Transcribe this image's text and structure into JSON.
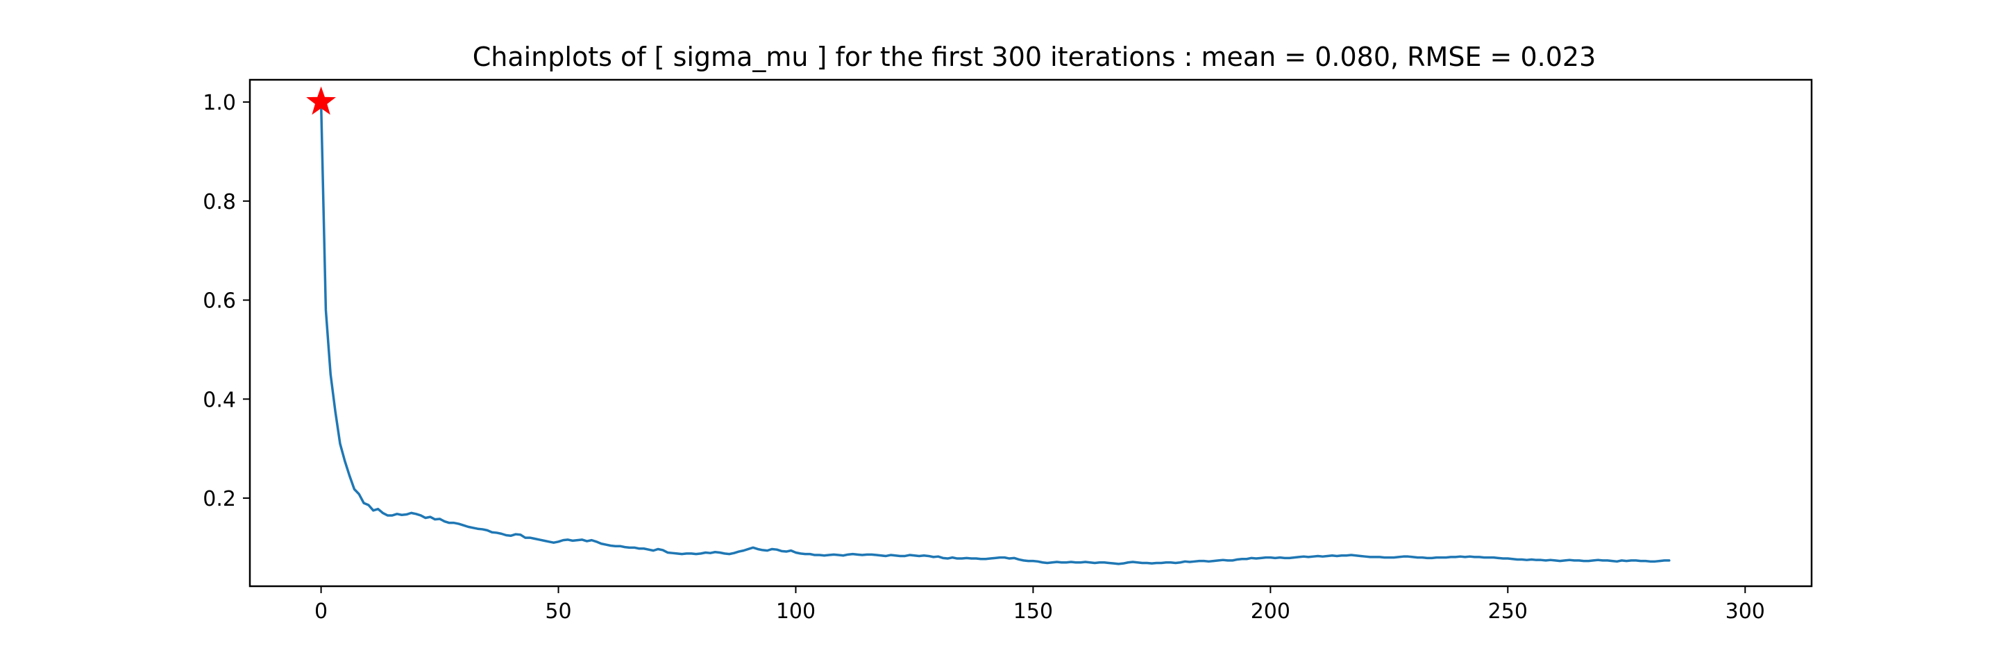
{
  "chart_data": {
    "type": "line",
    "title": "Chainplots of [ sigma_mu ] for the first 300 iterations : mean = 0.080, RMSE = 0.023",
    "xlabel": "",
    "ylabel": "",
    "xlim": [
      -15,
      314
    ],
    "ylim": [
      0.022,
      1.045
    ],
    "xticks": [
      0,
      50,
      100,
      150,
      200,
      250,
      300
    ],
    "xtick_labels": [
      "0",
      "50",
      "100",
      "150",
      "200",
      "250",
      "300"
    ],
    "yticks": [
      0.2,
      0.4,
      0.6,
      0.8,
      1.0
    ],
    "ytick_labels": [
      "0.2",
      "0.4",
      "0.6",
      "0.8",
      "1.0"
    ],
    "grid": false,
    "series": [
      {
        "color": "#1f77b4",
        "x_start": 0,
        "x_step": 1,
        "values": [
          1.0,
          0.58,
          0.45,
          0.375,
          0.31,
          0.275,
          0.245,
          0.218,
          0.208,
          0.19,
          0.186,
          0.175,
          0.178,
          0.17,
          0.165,
          0.165,
          0.168,
          0.166,
          0.167,
          0.17,
          0.168,
          0.165,
          0.16,
          0.162,
          0.157,
          0.158,
          0.153,
          0.15,
          0.15,
          0.148,
          0.145,
          0.142,
          0.14,
          0.138,
          0.137,
          0.135,
          0.131,
          0.13,
          0.128,
          0.125,
          0.124,
          0.127,
          0.126,
          0.12,
          0.12,
          0.118,
          0.116,
          0.114,
          0.112,
          0.11,
          0.112,
          0.115,
          0.116,
          0.114,
          0.115,
          0.116,
          0.113,
          0.115,
          0.112,
          0.108,
          0.106,
          0.104,
          0.103,
          0.103,
          0.101,
          0.1,
          0.1,
          0.098,
          0.098,
          0.096,
          0.094,
          0.097,
          0.095,
          0.09,
          0.089,
          0.088,
          0.087,
          0.088,
          0.088,
          0.087,
          0.088,
          0.09,
          0.089,
          0.091,
          0.09,
          0.088,
          0.087,
          0.089,
          0.092,
          0.094,
          0.097,
          0.1,
          0.097,
          0.095,
          0.094,
          0.097,
          0.096,
          0.093,
          0.092,
          0.094,
          0.09,
          0.088,
          0.087,
          0.087,
          0.085,
          0.085,
          0.084,
          0.085,
          0.086,
          0.085,
          0.084,
          0.086,
          0.087,
          0.086,
          0.085,
          0.086,
          0.086,
          0.085,
          0.084,
          0.083,
          0.085,
          0.084,
          0.083,
          0.083,
          0.085,
          0.084,
          0.083,
          0.084,
          0.083,
          0.081,
          0.082,
          0.079,
          0.078,
          0.08,
          0.078,
          0.078,
          0.079,
          0.078,
          0.078,
          0.077,
          0.077,
          0.078,
          0.079,
          0.08,
          0.08,
          0.078,
          0.079,
          0.076,
          0.074,
          0.073,
          0.073,
          0.072,
          0.07,
          0.069,
          0.07,
          0.071,
          0.07,
          0.07,
          0.071,
          0.07,
          0.07,
          0.071,
          0.07,
          0.069,
          0.07,
          0.07,
          0.069,
          0.068,
          0.067,
          0.068,
          0.07,
          0.071,
          0.07,
          0.069,
          0.069,
          0.068,
          0.069,
          0.069,
          0.07,
          0.07,
          0.069,
          0.07,
          0.072,
          0.071,
          0.072,
          0.073,
          0.073,
          0.072,
          0.073,
          0.074,
          0.075,
          0.074,
          0.074,
          0.076,
          0.077,
          0.077,
          0.079,
          0.078,
          0.079,
          0.08,
          0.08,
          0.079,
          0.08,
          0.079,
          0.079,
          0.08,
          0.081,
          0.082,
          0.081,
          0.082,
          0.083,
          0.082,
          0.083,
          0.084,
          0.083,
          0.084,
          0.084,
          0.085,
          0.084,
          0.083,
          0.082,
          0.081,
          0.081,
          0.081,
          0.08,
          0.08,
          0.08,
          0.081,
          0.082,
          0.082,
          0.081,
          0.08,
          0.08,
          0.079,
          0.079,
          0.08,
          0.08,
          0.08,
          0.081,
          0.081,
          0.082,
          0.081,
          0.082,
          0.081,
          0.081,
          0.08,
          0.08,
          0.08,
          0.079,
          0.078,
          0.078,
          0.077,
          0.076,
          0.076,
          0.075,
          0.076,
          0.075,
          0.075,
          0.074,
          0.075,
          0.074,
          0.073,
          0.074,
          0.075,
          0.074,
          0.074,
          0.073,
          0.073,
          0.074,
          0.075,
          0.074,
          0.074,
          0.073,
          0.072,
          0.074,
          0.073,
          0.074,
          0.074,
          0.073,
          0.073,
          0.072,
          0.072,
          0.073,
          0.074,
          0.074
        ]
      }
    ],
    "markers": [
      {
        "shape": "star",
        "color": "#ff0000",
        "x": 0,
        "y": 1.0
      }
    ]
  }
}
